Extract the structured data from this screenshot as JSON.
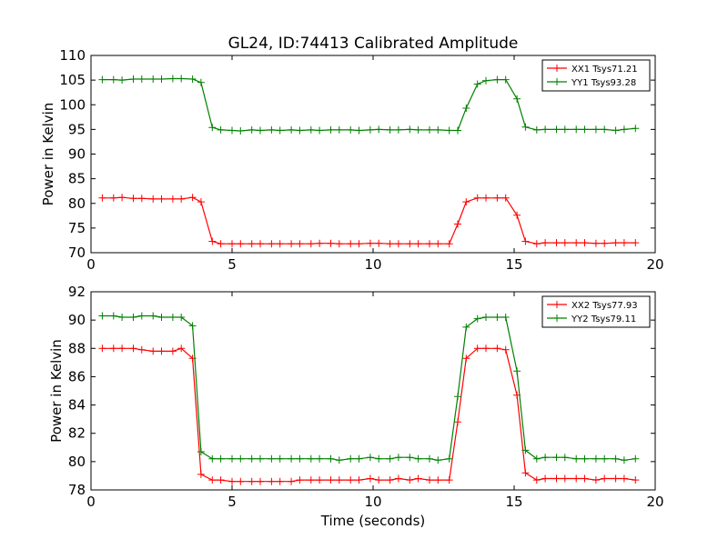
{
  "figure": {
    "title": "GL24, ID:74413 Calibrated Amplitude"
  },
  "chart_data": [
    {
      "type": "line",
      "title": "GL24, ID:74413 Calibrated Amplitude",
      "xlabel": "",
      "ylabel": "Power in Kelvin",
      "xlim": [
        0,
        20
      ],
      "ylim": [
        70,
        110
      ],
      "xticks": [
        0,
        5,
        10,
        15,
        20
      ],
      "yticks": [
        70,
        75,
        80,
        85,
        90,
        95,
        100,
        105,
        110
      ],
      "grid": false,
      "legend": "top-right",
      "x": [
        0.4,
        0.8,
        1.1,
        1.5,
        1.8,
        2.2,
        2.5,
        2.9,
        3.2,
        3.6,
        3.9,
        4.3,
        4.6,
        5.0,
        5.3,
        5.7,
        6.0,
        6.4,
        6.7,
        7.1,
        7.4,
        7.8,
        8.1,
        8.5,
        8.8,
        9.2,
        9.5,
        9.9,
        10.2,
        10.6,
        10.9,
        11.3,
        11.6,
        12.0,
        12.3,
        12.7,
        13.0,
        13.3,
        13.7,
        14.0,
        14.4,
        14.7,
        15.1,
        15.4,
        15.8,
        16.1,
        16.5,
        16.8,
        17.2,
        17.5,
        17.9,
        18.2,
        18.6,
        18.9,
        19.3
      ],
      "series": [
        {
          "name": "XX1 Tsys71.21",
          "color": "#ff0000",
          "values": [
            81.1,
            81.1,
            81.2,
            81.0,
            81.0,
            80.9,
            80.9,
            80.9,
            80.9,
            81.2,
            80.3,
            72.3,
            71.8,
            71.8,
            71.8,
            71.8,
            71.8,
            71.8,
            71.8,
            71.8,
            71.8,
            71.8,
            71.9,
            71.9,
            71.8,
            71.8,
            71.8,
            71.9,
            71.9,
            71.8,
            71.8,
            71.8,
            71.8,
            71.8,
            71.8,
            71.8,
            75.8,
            80.3,
            81.1,
            81.1,
            81.1,
            81.1,
            77.6,
            72.3,
            71.8,
            72.0,
            72.0,
            72.0,
            72.0,
            72.0,
            71.9,
            71.9,
            72.0,
            72.0,
            72.0
          ]
        },
        {
          "name": "YY1 Tsys93.28",
          "color": "#008000",
          "values": [
            105.1,
            105.1,
            105.0,
            105.2,
            105.2,
            105.2,
            105.2,
            105.3,
            105.3,
            105.2,
            104.5,
            95.4,
            94.9,
            94.8,
            94.7,
            94.9,
            94.8,
            94.9,
            94.8,
            94.9,
            94.8,
            94.9,
            94.8,
            94.9,
            94.9,
            94.9,
            94.8,
            94.9,
            95.0,
            94.9,
            94.9,
            95.0,
            94.9,
            94.9,
            94.9,
            94.8,
            94.8,
            99.3,
            104.2,
            104.9,
            105.1,
            105.1,
            101.2,
            95.5,
            94.9,
            95.0,
            95.0,
            95.0,
            95.0,
            95.0,
            95.0,
            95.0,
            94.8,
            95.0,
            95.2
          ]
        }
      ]
    },
    {
      "type": "line",
      "title": "",
      "xlabel": "Time (seconds)",
      "ylabel": "Power in Kelvin",
      "xlim": [
        0,
        20
      ],
      "ylim": [
        78,
        92
      ],
      "xticks": [
        0,
        5,
        10,
        15,
        20
      ],
      "yticks": [
        78,
        80,
        82,
        84,
        86,
        88,
        90,
        92
      ],
      "grid": false,
      "legend": "top-right",
      "x": [
        0.4,
        0.8,
        1.1,
        1.5,
        1.8,
        2.2,
        2.5,
        2.9,
        3.2,
        3.6,
        3.9,
        4.3,
        4.6,
        5.0,
        5.3,
        5.7,
        6.0,
        6.4,
        6.7,
        7.1,
        7.4,
        7.8,
        8.1,
        8.5,
        8.8,
        9.2,
        9.5,
        9.9,
        10.2,
        10.6,
        10.9,
        11.3,
        11.6,
        12.0,
        12.3,
        12.7,
        13.0,
        13.3,
        13.7,
        14.0,
        14.4,
        14.7,
        15.1,
        15.4,
        15.8,
        16.1,
        16.5,
        16.8,
        17.2,
        17.5,
        17.9,
        18.2,
        18.6,
        18.9,
        19.3
      ],
      "series": [
        {
          "name": "XX2 Tsys77.93",
          "color": "#ff0000",
          "values": [
            88.0,
            88.0,
            88.0,
            88.0,
            87.9,
            87.8,
            87.8,
            87.8,
            88.0,
            87.3,
            79.1,
            78.7,
            78.7,
            78.6,
            78.6,
            78.6,
            78.6,
            78.6,
            78.6,
            78.6,
            78.7,
            78.7,
            78.7,
            78.7,
            78.7,
            78.7,
            78.7,
            78.8,
            78.7,
            78.7,
            78.8,
            78.7,
            78.8,
            78.7,
            78.7,
            78.7,
            82.8,
            87.3,
            88.0,
            88.0,
            88.0,
            87.9,
            84.7,
            79.2,
            78.7,
            78.8,
            78.8,
            78.8,
            78.8,
            78.8,
            78.7,
            78.8,
            78.8,
            78.8,
            78.7
          ]
        },
        {
          "name": "YY2 Tsys79.11",
          "color": "#008000",
          "values": [
            90.3,
            90.3,
            90.2,
            90.2,
            90.3,
            90.3,
            90.2,
            90.2,
            90.2,
            89.6,
            80.7,
            80.2,
            80.2,
            80.2,
            80.2,
            80.2,
            80.2,
            80.2,
            80.2,
            80.2,
            80.2,
            80.2,
            80.2,
            80.2,
            80.1,
            80.2,
            80.2,
            80.3,
            80.2,
            80.2,
            80.3,
            80.3,
            80.2,
            80.2,
            80.1,
            80.2,
            84.6,
            89.5,
            90.1,
            90.2,
            90.2,
            90.2,
            86.4,
            80.8,
            80.2,
            80.3,
            80.3,
            80.3,
            80.2,
            80.2,
            80.2,
            80.2,
            80.2,
            80.1,
            80.2
          ]
        }
      ]
    }
  ]
}
